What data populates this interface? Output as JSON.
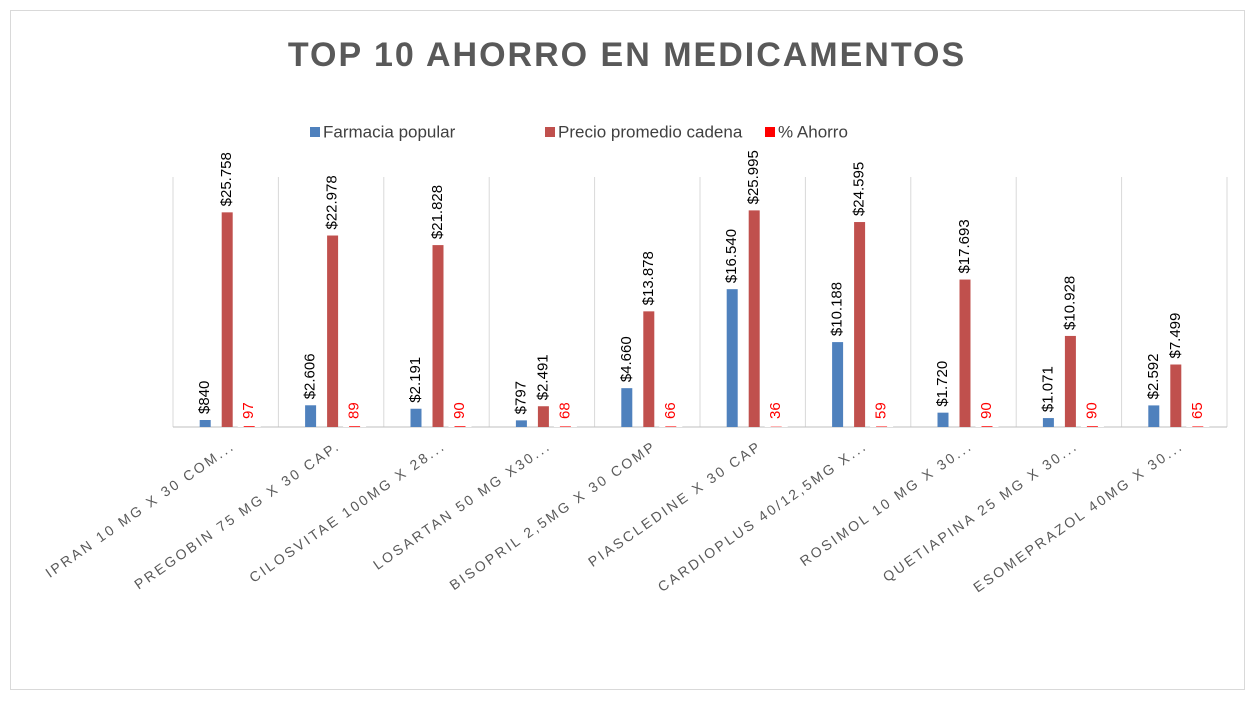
{
  "chart_data": {
    "type": "bar",
    "title": "TOP 10 AHORRO EN MEDICAMENTOS",
    "categories": [
      "IPRAN 10 MG X 30 COM...",
      "PREGOBIN 75 MG X 30 CAP.",
      "CILOSVITAE 100MG X 28...",
      "LOSARTAN 50 MG X30...",
      "BISOPRIL 2,5MG X 30 COMP",
      "PIASCLEDINE X 30 CAP",
      "CARDIOPLUS 40/12,5MG X...",
      "ROSIMOL 10 MG X 30...",
      "QUETIAPINA 25 MG X 30...",
      "ESOMEPRAZOL 40MG X 30..."
    ],
    "series": [
      {
        "name": "Farmacia popular",
        "color": "#4f81bd",
        "values": [
          840,
          2606,
          2191,
          797,
          4660,
          16540,
          10188,
          1720,
          1071,
          2592
        ],
        "value_labels": [
          "$840",
          "$2.606",
          "$2.191",
          "$797",
          "$4.660",
          "$16.540",
          "$10.188",
          "$1.720",
          "$1.071",
          "$2.592"
        ]
      },
      {
        "name": "Precio promedio cadena",
        "color": "#c0504d",
        "values": [
          25758,
          22978,
          21828,
          2491,
          13878,
          25995,
          24595,
          17693,
          10928,
          7499
        ],
        "value_labels": [
          "$25.758",
          "$22.978",
          "$21.828",
          "$2.491",
          "$13.878",
          "$25.995",
          "$24.595",
          "$17.693",
          "$10.928",
          "$7.499"
        ]
      },
      {
        "name": "% Ahorro",
        "color": "#ff0000",
        "values": [
          97,
          89,
          90,
          68,
          66,
          36,
          59,
          90,
          90,
          65
        ]
      }
    ],
    "ylim": [
      0,
      30000
    ],
    "legend": "top",
    "grid": true
  }
}
